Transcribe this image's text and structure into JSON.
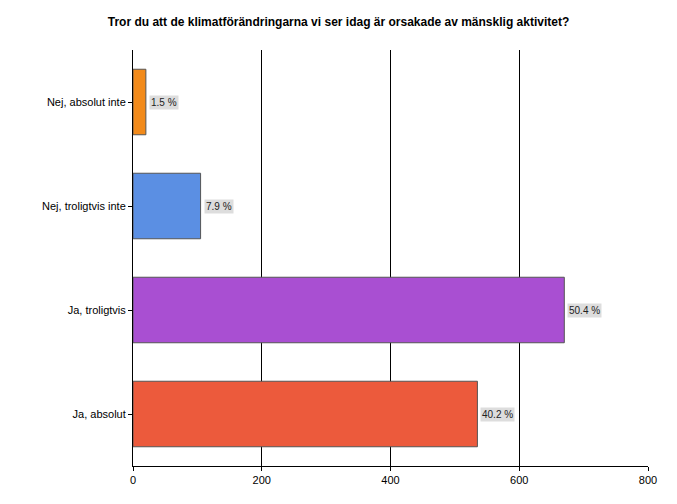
{
  "chart_data": {
    "type": "bar",
    "orientation": "horizontal",
    "title": "Tror du att de klimatförändringarna vi ser idag är orsakade av mänsklig aktivitet?",
    "categories": [
      "Nej, absolut inte",
      "Nej, troligtvis inte",
      "Ja, troligtvis",
      "Ja, absolut"
    ],
    "values": [
      20,
      105,
      670,
      535
    ],
    "percent_labels": [
      "1.5 %",
      "7.9 %",
      "50.4 %",
      "40.2 %"
    ],
    "colors": [
      "#f28a1a",
      "#5b8fe3",
      "#a94fd2",
      "#ec5a3c"
    ],
    "xlim": [
      0,
      800
    ],
    "xticks": [
      0,
      200,
      400,
      600,
      800
    ],
    "grid": true,
    "data_labels": true
  }
}
